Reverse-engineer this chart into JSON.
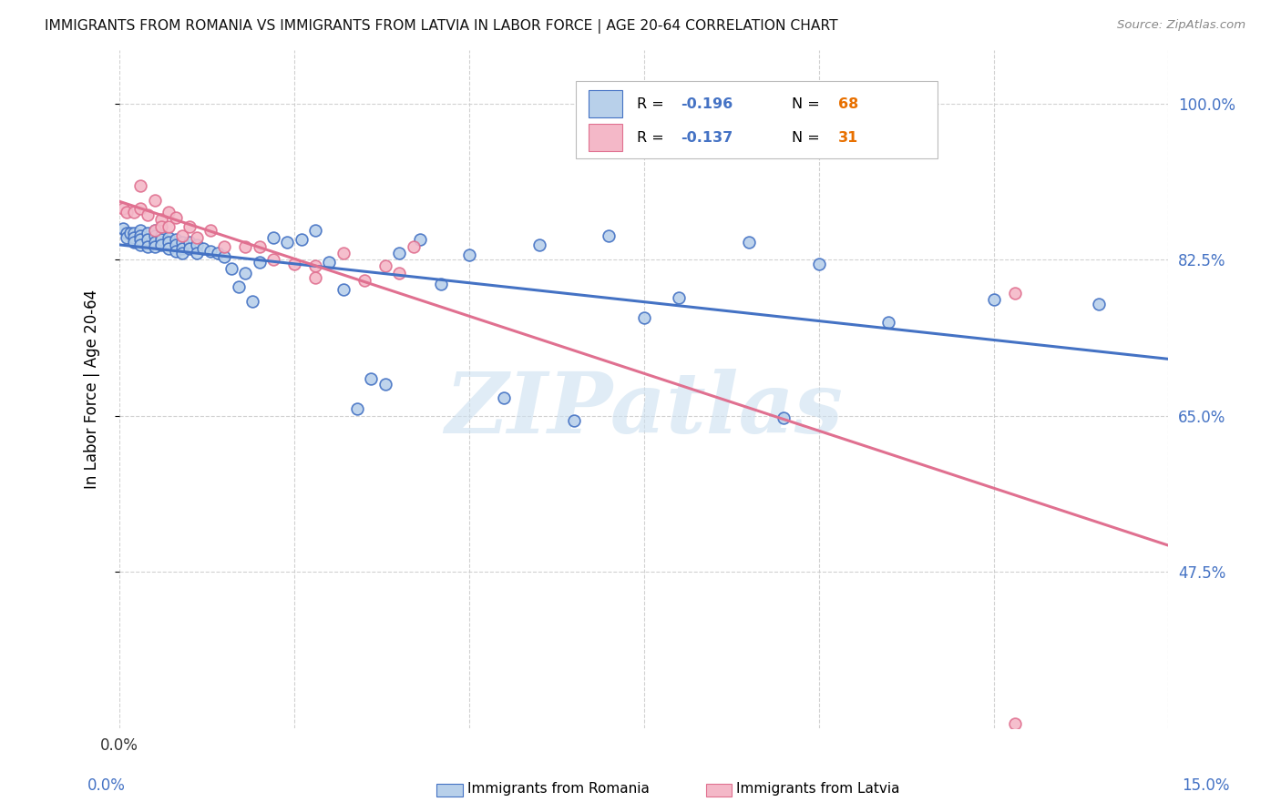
{
  "title": "IMMIGRANTS FROM ROMANIA VS IMMIGRANTS FROM LATVIA IN LABOR FORCE | AGE 20-64 CORRELATION CHART",
  "source": "Source: ZipAtlas.com",
  "ylabel": "In Labor Force | Age 20-64",
  "xlim": [
    0.0,
    0.15
  ],
  "ylim": [
    0.3,
    1.06
  ],
  "yticks": [
    0.475,
    0.65,
    0.825,
    1.0
  ],
  "ytick_labels": [
    "47.5%",
    "65.0%",
    "82.5%",
    "100.0%"
  ],
  "xtick_vals": [
    0.0,
    0.025,
    0.05,
    0.075,
    0.1,
    0.125,
    0.15
  ],
  "legend_r_romania": "-0.196",
  "legend_n_romania": "68",
  "legend_r_latvia": "-0.137",
  "legend_n_latvia": "31",
  "color_romania_fill": "#b8d0ea",
  "color_romania_edge": "#4472c4",
  "color_latvia_fill": "#f4b8c8",
  "color_latvia_edge": "#e07090",
  "line_color_romania": "#4472c4",
  "line_color_latvia": "#e07090",
  "right_axis_color": "#4472c4",
  "n_color": "#e87000",
  "watermark": "ZIPatlas",
  "watermark_color": "#cce0f0",
  "title_color": "#111111",
  "source_color": "#888888",
  "romania_x": [
    0.0005,
    0.001,
    0.001,
    0.0015,
    0.002,
    0.002,
    0.002,
    0.003,
    0.003,
    0.003,
    0.003,
    0.004,
    0.004,
    0.004,
    0.005,
    0.005,
    0.005,
    0.005,
    0.006,
    0.006,
    0.006,
    0.007,
    0.007,
    0.007,
    0.008,
    0.008,
    0.008,
    0.009,
    0.009,
    0.009,
    0.01,
    0.01,
    0.011,
    0.011,
    0.012,
    0.013,
    0.014,
    0.015,
    0.016,
    0.017,
    0.018,
    0.019,
    0.02,
    0.022,
    0.024,
    0.026,
    0.028,
    0.03,
    0.032,
    0.034,
    0.036,
    0.038,
    0.04,
    0.043,
    0.046,
    0.05,
    0.055,
    0.06,
    0.065,
    0.07,
    0.075,
    0.08,
    0.09,
    0.095,
    0.1,
    0.11,
    0.125,
    0.14
  ],
  "romania_y": [
    0.86,
    0.855,
    0.85,
    0.855,
    0.855,
    0.85,
    0.845,
    0.858,
    0.852,
    0.848,
    0.842,
    0.855,
    0.848,
    0.84,
    0.858,
    0.852,
    0.845,
    0.84,
    0.852,
    0.848,
    0.842,
    0.85,
    0.845,
    0.838,
    0.848,
    0.842,
    0.835,
    0.845,
    0.838,
    0.832,
    0.845,
    0.838,
    0.842,
    0.832,
    0.838,
    0.835,
    0.832,
    0.828,
    0.815,
    0.795,
    0.81,
    0.778,
    0.822,
    0.85,
    0.845,
    0.848,
    0.858,
    0.822,
    0.792,
    0.658,
    0.692,
    0.685,
    0.832,
    0.848,
    0.798,
    0.83,
    0.67,
    0.842,
    0.645,
    0.852,
    0.76,
    0.782,
    0.845,
    0.648,
    0.82,
    0.755,
    0.78,
    0.775
  ],
  "latvia_x": [
    0.0005,
    0.001,
    0.002,
    0.003,
    0.003,
    0.004,
    0.005,
    0.005,
    0.006,
    0.006,
    0.007,
    0.007,
    0.008,
    0.009,
    0.01,
    0.011,
    0.013,
    0.015,
    0.018,
    0.02,
    0.022,
    0.025,
    0.028,
    0.032,
    0.038,
    0.042,
    0.028,
    0.035,
    0.04,
    0.128,
    0.128
  ],
  "latvia_y": [
    0.882,
    0.878,
    0.878,
    0.908,
    0.882,
    0.875,
    0.892,
    0.858,
    0.87,
    0.862,
    0.878,
    0.862,
    0.872,
    0.852,
    0.862,
    0.85,
    0.858,
    0.84,
    0.84,
    0.84,
    0.825,
    0.82,
    0.818,
    0.832,
    0.818,
    0.84,
    0.805,
    0.802,
    0.81,
    0.788,
    0.305
  ]
}
